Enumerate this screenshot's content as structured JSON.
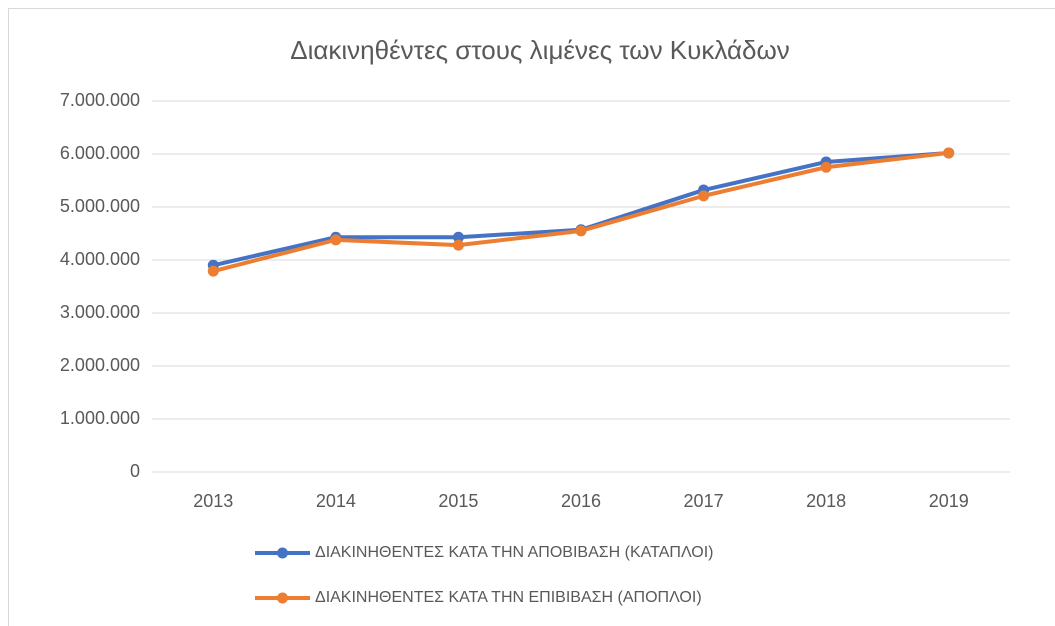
{
  "chart_data": {
    "type": "line",
    "title": "Διακινηθέντες στους λιμένες των Κυκλάδων",
    "categories": [
      "2013",
      "2014",
      "2015",
      "2016",
      "2017",
      "2018",
      "2019"
    ],
    "series": [
      {
        "name": "ΔΙΑΚΙΝΗΘΕΝΤΕΣ ΚΑΤΑ ΤΗΝ ΑΠΟΒΙΒΑΣΗ (ΚΑΤΑΠΛΟΙ)",
        "color": "#4472c4",
        "values": [
          3900000,
          4430000,
          4430000,
          4570000,
          5320000,
          5850000,
          6020000
        ]
      },
      {
        "name": "ΔΙΑΚΙΝΗΘΕΝΤΕΣ ΚΑΤΑ ΤΗΝ ΕΠΙΒΙΒΑΣΗ (ΑΠΟΠΛΟΙ)",
        "color": "#ed7d31",
        "values": [
          3790000,
          4380000,
          4280000,
          4550000,
          5210000,
          5750000,
          6020000
        ]
      }
    ],
    "ylim": [
      0,
      7000000
    ],
    "yticks": [
      0,
      {
        "value": 1000000,
        "label": "1.000.000"
      },
      {
        "value": 2000000,
        "label": "2.000.000"
      },
      {
        "value": 3000000,
        "label": "3.000.000"
      },
      {
        "value": 4000000,
        "label": "4.000.000"
      },
      {
        "value": 5000000,
        "label": "5.000.000"
      },
      {
        "value": 6000000,
        "label": "6.000.000"
      },
      {
        "value": 7000000,
        "label": "7.000.000"
      }
    ],
    "grid": true,
    "legend": "bottom"
  }
}
